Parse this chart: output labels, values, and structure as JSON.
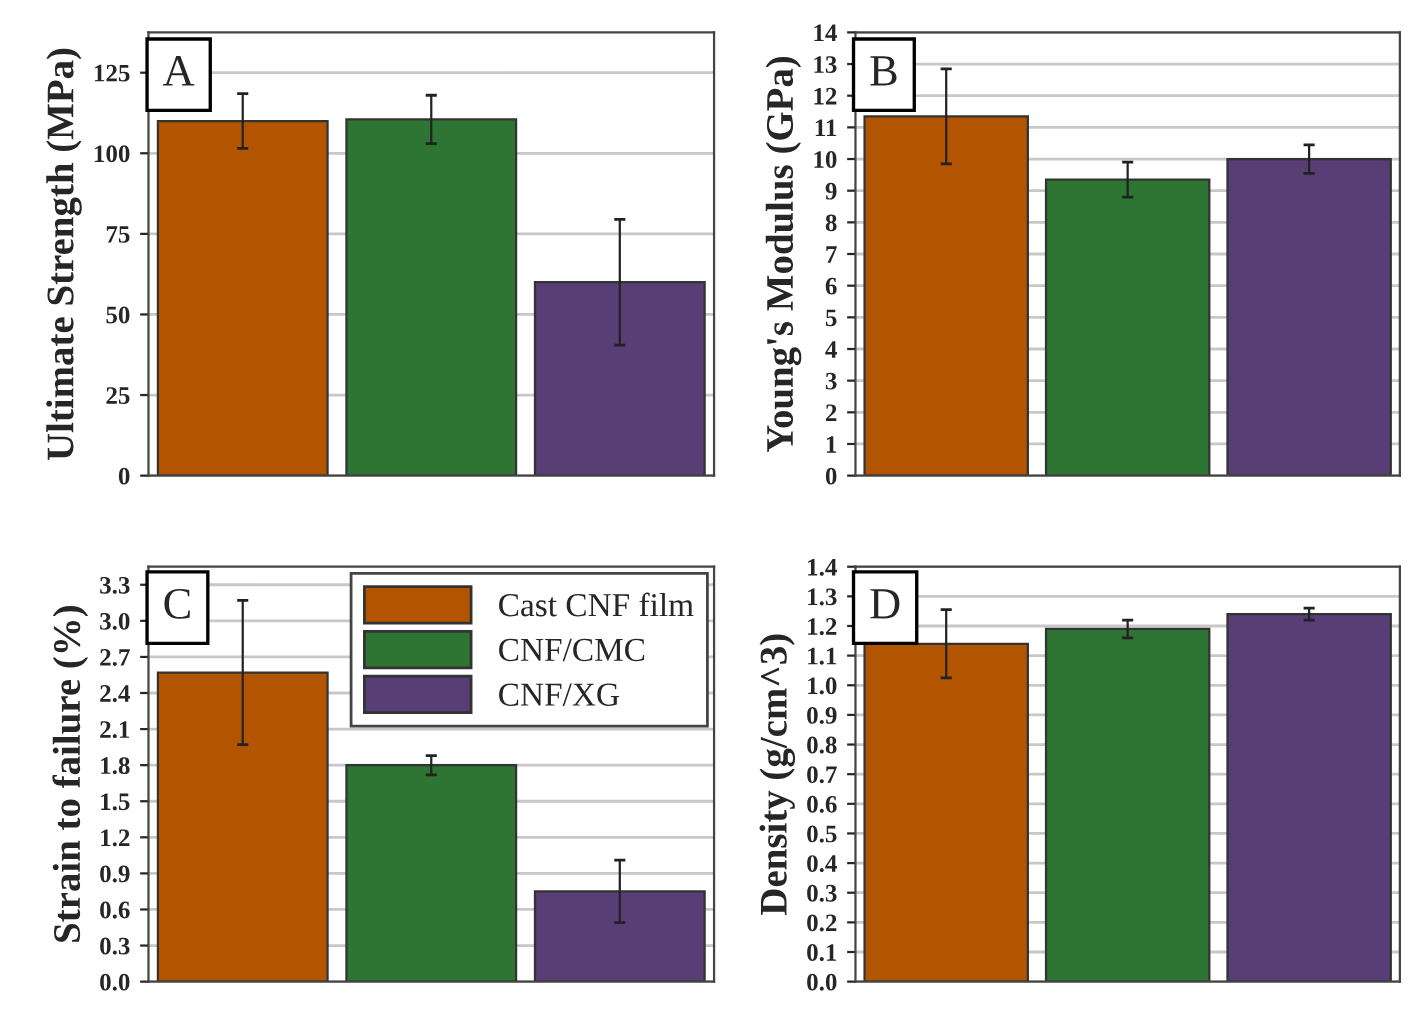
{
  "chart_data": [
    {
      "type": "bar",
      "ylabel": "Ultimate Strength (MPa)",
      "annotations": [
        "A"
      ],
      "categories": [
        null,
        null,
        null
      ],
      "ylim": [
        0,
        137.5
      ],
      "yticks": [
        0,
        25,
        50,
        75,
        100,
        125
      ],
      "grid": "y",
      "series": [
        {
          "color": "#b35400",
          "values": [
            110,
            null,
            null
          ],
          "errors": [
            8.5,
            null,
            null
          ]
        },
        {
          "color": "#2e7432",
          "values": [
            null,
            110.5,
            null
          ],
          "errors": [
            null,
            7.5,
            null
          ]
        },
        {
          "color": "#573e74",
          "values": [
            null,
            null,
            60
          ],
          "errors": [
            null,
            null,
            19.5
          ]
        }
      ]
    },
    {
      "type": "bar",
      "ylabel": "Young's Modulus (GPa)",
      "annotations": [
        "B"
      ],
      "categories": [
        null,
        null,
        null
      ],
      "ylim": [
        0,
        14
      ],
      "yticks": [
        0,
        1,
        2,
        3,
        4,
        5,
        6,
        7,
        8,
        9,
        10,
        11,
        12,
        13,
        14
      ],
      "grid": "y",
      "series": [
        {
          "color": "#b35400",
          "values": [
            11.35,
            null,
            null
          ],
          "errors": [
            1.5,
            null,
            null
          ]
        },
        {
          "color": "#2e7432",
          "values": [
            null,
            9.35,
            null
          ],
          "errors": [
            null,
            0.55,
            null
          ]
        },
        {
          "color": "#573e74",
          "values": [
            null,
            null,
            10.0
          ],
          "errors": [
            null,
            null,
            0.45
          ]
        }
      ]
    },
    {
      "type": "bar",
      "ylabel": "Strain to failure (%)",
      "annotations": [
        "C"
      ],
      "categories": [
        null,
        null,
        null
      ],
      "ylim": [
        0,
        3.45
      ],
      "yticks": [
        {
          "value": 0,
          "label": "0.0"
        },
        {
          "value": 0.3,
          "label": "0.3"
        },
        {
          "value": 0.6,
          "label": "0.6"
        },
        {
          "value": 0.9,
          "label": "0.9"
        },
        {
          "value": 1.2,
          "label": "1.2"
        },
        {
          "value": 1.5,
          "label": "1.5"
        },
        {
          "value": 1.8,
          "label": "1.8"
        },
        {
          "value": 2.1,
          "label": "2.1"
        },
        {
          "value": 2.4,
          "label": "2.4"
        },
        {
          "value": 2.7,
          "label": "2.7"
        },
        {
          "value": 3.0,
          "label": "3.0"
        },
        {
          "value": 3.3,
          "label": "3.3"
        }
      ],
      "grid": "y",
      "legend": "top right",
      "series": [
        {
          "name": "Cast CNF film",
          "color": "#b35400",
          "values": [
            2.57,
            null,
            null
          ],
          "errors": [
            0.6,
            null,
            null
          ]
        },
        {
          "name": "CNF/CMC",
          "color": "#2e7432",
          "values": [
            null,
            1.8,
            null
          ],
          "errors": [
            null,
            0.08,
            null
          ]
        },
        {
          "name": "CNF/XG",
          "color": "#573e74",
          "values": [
            null,
            null,
            0.75
          ],
          "errors": [
            null,
            null,
            0.26
          ]
        }
      ]
    },
    {
      "type": "bar",
      "ylabel": "Density (g/cm^3)",
      "annotations": [
        "D"
      ],
      "categories": [
        null,
        null,
        null
      ],
      "ylim": [
        0,
        1.4
      ],
      "yticks": [
        {
          "value": 0,
          "label": "0.0"
        },
        {
          "value": 0.1,
          "label": "0.1"
        },
        {
          "value": 0.2,
          "label": "0.2"
        },
        {
          "value": 0.3,
          "label": "0.3"
        },
        {
          "value": 0.4,
          "label": "0.4"
        },
        {
          "value": 0.5,
          "label": "0.5"
        },
        {
          "value": 0.6,
          "label": "0.6"
        },
        {
          "value": 0.7,
          "label": "0.7"
        },
        {
          "value": 0.8,
          "label": "0.8"
        },
        {
          "value": 0.9,
          "label": "0.9"
        },
        {
          "value": 1.0,
          "label": "1.0"
        },
        {
          "value": 1.1,
          "label": "1.1"
        },
        {
          "value": 1.2,
          "label": "1.2"
        },
        {
          "value": 1.3,
          "label": "1.3"
        },
        {
          "value": 1.4,
          "label": "1.4"
        }
      ],
      "grid": "y",
      "series": [
        {
          "color": "#b35400",
          "values": [
            1.14,
            null,
            null
          ],
          "errors": [
            0.115,
            null,
            null
          ]
        },
        {
          "color": "#2e7432",
          "values": [
            null,
            1.19,
            null
          ],
          "errors": [
            null,
            0.03,
            null
          ]
        },
        {
          "color": "#573e74",
          "values": [
            null,
            null,
            1.24
          ],
          "errors": [
            null,
            null,
            0.02
          ]
        }
      ]
    }
  ]
}
